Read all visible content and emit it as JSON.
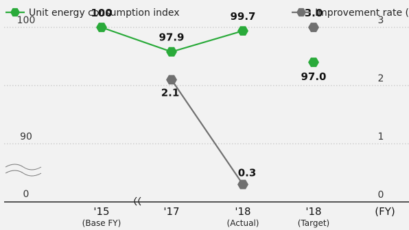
{
  "chart_data": {
    "type": "line",
    "categories": [
      {
        "label": "'15",
        "sublabel": "(Base FY)"
      },
      {
        "label": "'17",
        "sublabel": ""
      },
      {
        "label": "'18",
        "sublabel": "(Actual)"
      },
      {
        "label": "'18",
        "sublabel": "(Target)"
      }
    ],
    "xunit": "(FY)",
    "left_axis": {
      "ticks": [
        "100",
        "90",
        "0"
      ],
      "break": true
    },
    "right_axis": {
      "ticks": [
        "3",
        "2",
        "1",
        "0"
      ],
      "ylim": [
        0,
        3
      ]
    },
    "series": [
      {
        "name": "Unit energy consumption index",
        "axis": "left",
        "color": "#2aaa3a",
        "values": [
          100,
          97.9,
          99.7,
          97.0
        ],
        "labels": [
          "100",
          "97.9",
          "99.7",
          "97.0"
        ],
        "connected": [
          true,
          true,
          true,
          false
        ]
      },
      {
        "name": "Improvement rate (%)",
        "axis": "right",
        "color": "#707070",
        "values": [
          null,
          2.1,
          0.3,
          3.0
        ],
        "labels": [
          "",
          "2.1",
          "0.3",
          "3.0"
        ],
        "connected": [
          false,
          true,
          true,
          false
        ]
      }
    ],
    "grid": true,
    "legend": "top"
  }
}
